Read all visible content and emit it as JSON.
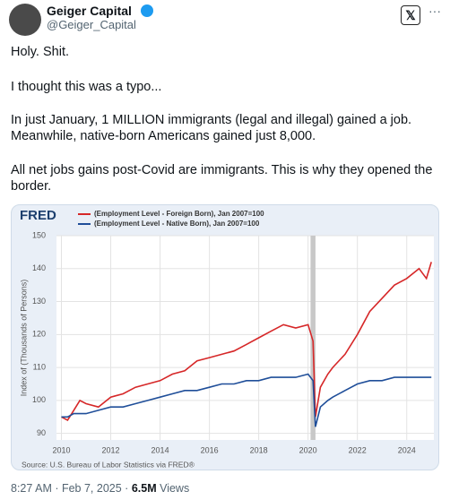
{
  "tweet": {
    "name": "Geiger Capital",
    "handle": "@Geiger_Capital",
    "lines": [
      "Holy. Shit.",
      "I thought this was a typo...",
      "In just January, 1 MILLION immigrants (legal and illegal) gained a job.",
      "Meanwhile, native-born Americans gained just 8,000.",
      "All net jobs gains post-Covid are immigrants. This is why they opened the",
      "border."
    ],
    "footer": {
      "time": "8:27 AM · Feb 7, 2025 ·",
      "views": "6.5M",
      "views_label": "Views"
    }
  },
  "chart_data": {
    "type": "line",
    "logo": "FRED",
    "y_label": "Index of (Thousands of Persons)",
    "source": "Source: U.S. Bureau of Labor Statistics via FRED®",
    "x": [
      2010,
      2010.25,
      2010.5,
      2010.75,
      2011,
      2011.5,
      2012,
      2012.5,
      2013,
      2013.5,
      2014,
      2014.5,
      2015,
      2015.5,
      2016,
      2016.5,
      2017,
      2017.5,
      2018,
      2018.5,
      2019,
      2019.5,
      2020,
      2020.2,
      2020.3,
      2020.5,
      2020.8,
      2021,
      2021.5,
      2022,
      2022.5,
      2023,
      2023.5,
      2024,
      2024.5,
      2024.8,
      2025
    ],
    "series": [
      {
        "name": "(Employment Level - Foreign Born), Jan 2007=100",
        "color": "#d62728",
        "values": [
          95,
          94,
          97,
          100,
          99,
          98,
          101,
          102,
          104,
          105,
          106,
          108,
          109,
          112,
          113,
          114,
          115,
          117,
          119,
          121,
          123,
          122,
          123,
          118,
          95,
          104,
          108,
          110,
          114,
          120,
          127,
          131,
          135,
          137,
          140,
          137,
          142
        ]
      },
      {
        "name": "(Employment Level - Native Born), Jan 2007=100",
        "color": "#1f4e99",
        "values": [
          95,
          95,
          96,
          96,
          96,
          97,
          98,
          98,
          99,
          100,
          101,
          102,
          103,
          103,
          104,
          105,
          105,
          106,
          106,
          107,
          107,
          107,
          108,
          106,
          92,
          98,
          100,
          101,
          103,
          105,
          106,
          106,
          107,
          107,
          107,
          107,
          107
        ]
      }
    ],
    "recession": [
      2020.1,
      2020.3
    ],
    "xlim": [
      2009.8,
      2025.1
    ],
    "xticks": [
      2010,
      2012,
      2014,
      2016,
      2018,
      2020,
      2022,
      2024
    ],
    "ylim": [
      88,
      150
    ],
    "yticks": [
      90,
      100,
      110,
      120,
      130,
      140,
      150
    ],
    "grid": true
  }
}
